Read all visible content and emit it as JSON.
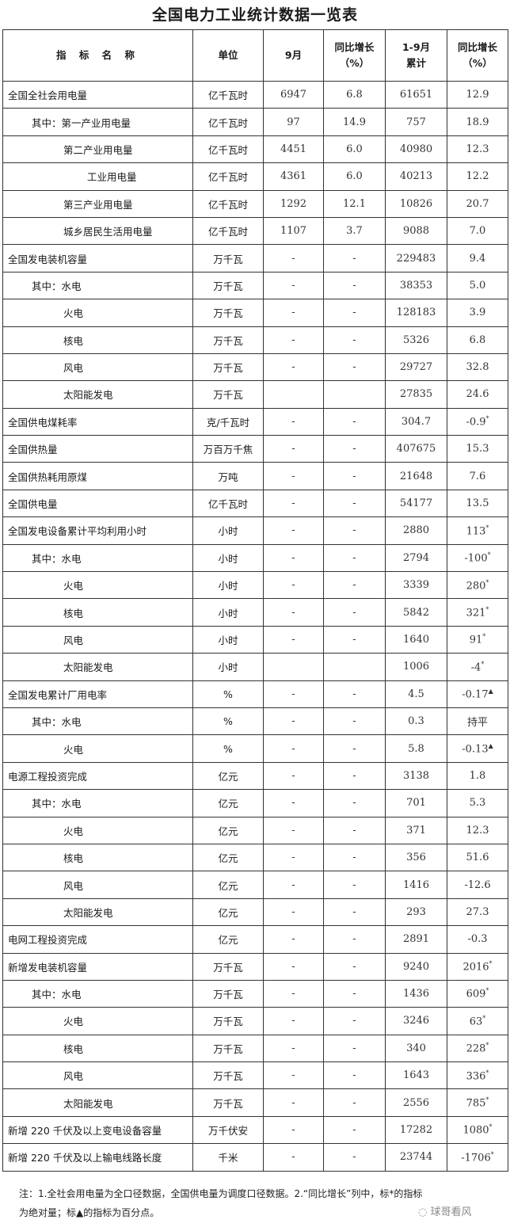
{
  "title": "全国电力工业统计数据一览表",
  "headers": {
    "name": "指 标 名 称",
    "unit": "单位",
    "month": "9月",
    "month_yoy_1": "同比增长",
    "month_yoy_2": "（%）",
    "cum_1": "1-9月",
    "cum_2": "累计",
    "cum_yoy_1": "同比增长",
    "cum_yoy_2": "（%）"
  },
  "rows": [
    {
      "name": "全国全社会用电量",
      "level": 0,
      "unit": "亿千瓦时",
      "month": "6947",
      "month_yoy": "6.8",
      "cum": "61651",
      "cum_yoy": "12.9",
      "mark": ""
    },
    {
      "name": "其中：第一产业用电量",
      "level": 1,
      "unit": "亿千瓦时",
      "month": "97",
      "month_yoy": "14.9",
      "cum": "757",
      "cum_yoy": "18.9",
      "mark": ""
    },
    {
      "name": "第二产业用电量",
      "level": 2,
      "unit": "亿千瓦时",
      "month": "4451",
      "month_yoy": "6.0",
      "cum": "40980",
      "cum_yoy": "12.3",
      "mark": ""
    },
    {
      "name": "工业用电量",
      "level": 3,
      "unit": "亿千瓦时",
      "month": "4361",
      "month_yoy": "6.0",
      "cum": "40213",
      "cum_yoy": "12.2",
      "mark": ""
    },
    {
      "name": "第三产业用电量",
      "level": 2,
      "unit": "亿千瓦时",
      "month": "1292",
      "month_yoy": "12.1",
      "cum": "10826",
      "cum_yoy": "20.7",
      "mark": ""
    },
    {
      "name": "城乡居民生活用电量",
      "level": 2,
      "unit": "亿千瓦时",
      "month": "1107",
      "month_yoy": "3.7",
      "cum": "9088",
      "cum_yoy": "7.0",
      "mark": ""
    },
    {
      "name": "全国发电装机容量",
      "level": 0,
      "unit": "万千瓦",
      "month": "-",
      "month_yoy": "-",
      "cum": "229483",
      "cum_yoy": "9.4",
      "mark": ""
    },
    {
      "name": "其中：水电",
      "level": 1,
      "unit": "万千瓦",
      "month": "-",
      "month_yoy": "-",
      "cum": "38353",
      "cum_yoy": "5.0",
      "mark": ""
    },
    {
      "name": "火电",
      "level": 2,
      "unit": "万千瓦",
      "month": "-",
      "month_yoy": "-",
      "cum": "128183",
      "cum_yoy": "3.9",
      "mark": ""
    },
    {
      "name": "核电",
      "level": 2,
      "unit": "万千瓦",
      "month": "-",
      "month_yoy": "-",
      "cum": "5326",
      "cum_yoy": "6.8",
      "mark": ""
    },
    {
      "name": "风电",
      "level": 2,
      "unit": "万千瓦",
      "month": "-",
      "month_yoy": "-",
      "cum": "29727",
      "cum_yoy": "32.8",
      "mark": ""
    },
    {
      "name": "太阳能发电",
      "level": 2,
      "unit": "万千瓦",
      "month": "",
      "month_yoy": "",
      "cum": "27835",
      "cum_yoy": "24.6",
      "mark": ""
    },
    {
      "name": "全国供电煤耗率",
      "level": 0,
      "unit": "克/千瓦时",
      "month": "-",
      "month_yoy": "-",
      "cum": "304.7",
      "cum_yoy": "-0.9",
      "mark": "*"
    },
    {
      "name": "全国供热量",
      "level": 0,
      "unit": "万百万千焦",
      "month": "-",
      "month_yoy": "-",
      "cum": "407675",
      "cum_yoy": "15.3",
      "mark": ""
    },
    {
      "name": "全国供热耗用原煤",
      "level": 0,
      "unit": "万吨",
      "month": "-",
      "month_yoy": "-",
      "cum": "21648",
      "cum_yoy": "7.6",
      "mark": ""
    },
    {
      "name": "全国供电量",
      "level": 0,
      "unit": "亿千瓦时",
      "month": "-",
      "month_yoy": "-",
      "cum": "54177",
      "cum_yoy": "13.5",
      "mark": ""
    },
    {
      "name": "全国发电设备累计平均利用小时",
      "level": 0,
      "unit": "小时",
      "month": "-",
      "month_yoy": "-",
      "cum": "2880",
      "cum_yoy": "113",
      "mark": "*"
    },
    {
      "name": "其中：水电",
      "level": 1,
      "unit": "小时",
      "month": "-",
      "month_yoy": "-",
      "cum": "2794",
      "cum_yoy": "-100",
      "mark": "*"
    },
    {
      "name": "火电",
      "level": 2,
      "unit": "小时",
      "month": "-",
      "month_yoy": "-",
      "cum": "3339",
      "cum_yoy": "280",
      "mark": "*"
    },
    {
      "name": "核电",
      "level": 2,
      "unit": "小时",
      "month": "-",
      "month_yoy": "-",
      "cum": "5842",
      "cum_yoy": "321",
      "mark": "*"
    },
    {
      "name": "风电",
      "level": 2,
      "unit": "小时",
      "month": "-",
      "month_yoy": "-",
      "cum": "1640",
      "cum_yoy": "91",
      "mark": "*"
    },
    {
      "name": "太阳能发电",
      "level": 2,
      "unit": "小时",
      "month": "",
      "month_yoy": "",
      "cum": "1006",
      "cum_yoy": "-4",
      "mark": "*"
    },
    {
      "name": "全国发电累计厂用电率",
      "level": 0,
      "unit": "%",
      "month": "-",
      "month_yoy": "-",
      "cum": "4.5",
      "cum_yoy": "-0.17",
      "mark": "▲"
    },
    {
      "name": "其中：水电",
      "level": 1,
      "unit": "%",
      "month": "-",
      "month_yoy": "-",
      "cum": "0.3",
      "cum_yoy": "持平",
      "mark": ""
    },
    {
      "name": "火电",
      "level": 2,
      "unit": "%",
      "month": "-",
      "month_yoy": "-",
      "cum": "5.8",
      "cum_yoy": "-0.13",
      "mark": "▲"
    },
    {
      "name": "电源工程投资完成",
      "level": 0,
      "unit": "亿元",
      "month": "-",
      "month_yoy": "-",
      "cum": "3138",
      "cum_yoy": "1.8",
      "mark": ""
    },
    {
      "name": "其中：水电",
      "level": 1,
      "unit": "亿元",
      "month": "-",
      "month_yoy": "-",
      "cum": "701",
      "cum_yoy": "5.3",
      "mark": ""
    },
    {
      "name": "火电",
      "level": 2,
      "unit": "亿元",
      "month": "-",
      "month_yoy": "-",
      "cum": "371",
      "cum_yoy": "12.3",
      "mark": ""
    },
    {
      "name": "核电",
      "level": 2,
      "unit": "亿元",
      "month": "-",
      "month_yoy": "-",
      "cum": "356",
      "cum_yoy": "51.6",
      "mark": ""
    },
    {
      "name": "风电",
      "level": 2,
      "unit": "亿元",
      "month": "-",
      "month_yoy": "-",
      "cum": "1416",
      "cum_yoy": "-12.6",
      "mark": ""
    },
    {
      "name": "太阳能发电",
      "level": 2,
      "unit": "亿元",
      "month": "-",
      "month_yoy": "-",
      "cum": "293",
      "cum_yoy": "27.3",
      "mark": ""
    },
    {
      "name": "电网工程投资完成",
      "level": 0,
      "unit": "亿元",
      "month": "-",
      "month_yoy": "-",
      "cum": "2891",
      "cum_yoy": "-0.3",
      "mark": ""
    },
    {
      "name": "新增发电装机容量",
      "level": 0,
      "unit": "万千瓦",
      "month": "-",
      "month_yoy": "-",
      "cum": "9240",
      "cum_yoy": "2016",
      "mark": "*"
    },
    {
      "name": "其中：水电",
      "level": 1,
      "unit": "万千瓦",
      "month": "-",
      "month_yoy": "-",
      "cum": "1436",
      "cum_yoy": "609",
      "mark": "*"
    },
    {
      "name": "火电",
      "level": 2,
      "unit": "万千瓦",
      "month": "-",
      "month_yoy": "-",
      "cum": "3246",
      "cum_yoy": "63",
      "mark": "*"
    },
    {
      "name": "核电",
      "level": 2,
      "unit": "万千瓦",
      "month": "-",
      "month_yoy": "-",
      "cum": "340",
      "cum_yoy": "228",
      "mark": "*"
    },
    {
      "name": "风电",
      "level": 2,
      "unit": "万千瓦",
      "month": "-",
      "month_yoy": "-",
      "cum": "1643",
      "cum_yoy": "336",
      "mark": "*"
    },
    {
      "name": "太阳能发电",
      "level": 2,
      "unit": "万千瓦",
      "month": "-",
      "month_yoy": "-",
      "cum": "2556",
      "cum_yoy": "785",
      "mark": "*"
    },
    {
      "name": "新增 220 千伏及以上变电设备容量",
      "level": 0,
      "unit": "万千伏安",
      "month": "-",
      "month_yoy": "-",
      "cum": "17282",
      "cum_yoy": "1080",
      "mark": "*"
    },
    {
      "name": "新增 220 千伏及以上输电线路长度",
      "level": 0,
      "unit": "千米",
      "month": "-",
      "month_yoy": "-",
      "cum": "23744",
      "cum_yoy": "-1706",
      "mark": "*"
    }
  ],
  "note": {
    "line1": "注：1.全社会用电量为全口径数据，全国供电量为调度口径数据。2.“同比增长”列中，标*的指标",
    "line2": "为绝对量；标▲的指标为百分点。"
  },
  "watermark": "球哥看风"
}
